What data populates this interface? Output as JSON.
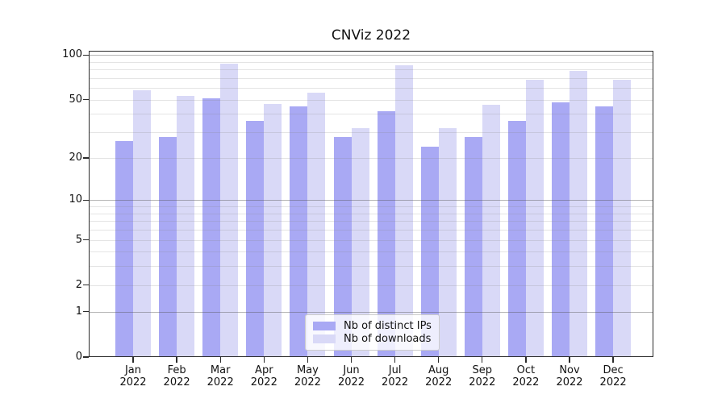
{
  "chart_data": {
    "type": "bar",
    "title": "CNViz 2022",
    "xlabel": "",
    "ylabel": "",
    "categories": [
      "Jan",
      "Feb",
      "Mar",
      "Apr",
      "May",
      "Jun",
      "Jul",
      "Aug",
      "Sep",
      "Oct",
      "Nov",
      "Dec"
    ],
    "category_year": "2022",
    "series": [
      {
        "name": "Nb of distinct IPs",
        "color": "#a9a9f4",
        "values": [
          26,
          28,
          51,
          36,
          45,
          28,
          42,
          24,
          28,
          36,
          48,
          45
        ]
      },
      {
        "name": "Nb of downloads",
        "color": "#d9d9f7",
        "values": [
          58,
          53,
          88,
          47,
          56,
          32,
          85,
          32,
          46,
          68,
          78,
          68
        ]
      }
    ],
    "yscale": "log1p",
    "ylim": [
      0,
      100
    ],
    "yticks": [
      0,
      1,
      2,
      5,
      10,
      20,
      50,
      100
    ],
    "grid": {
      "on": true,
      "major_lines": [
        1,
        10,
        100
      ],
      "minor_lines": [
        2,
        3,
        4,
        5,
        6,
        7,
        8,
        9,
        20,
        30,
        40,
        50,
        60,
        70,
        80,
        90
      ]
    },
    "legend": {
      "position": "lower center"
    }
  }
}
